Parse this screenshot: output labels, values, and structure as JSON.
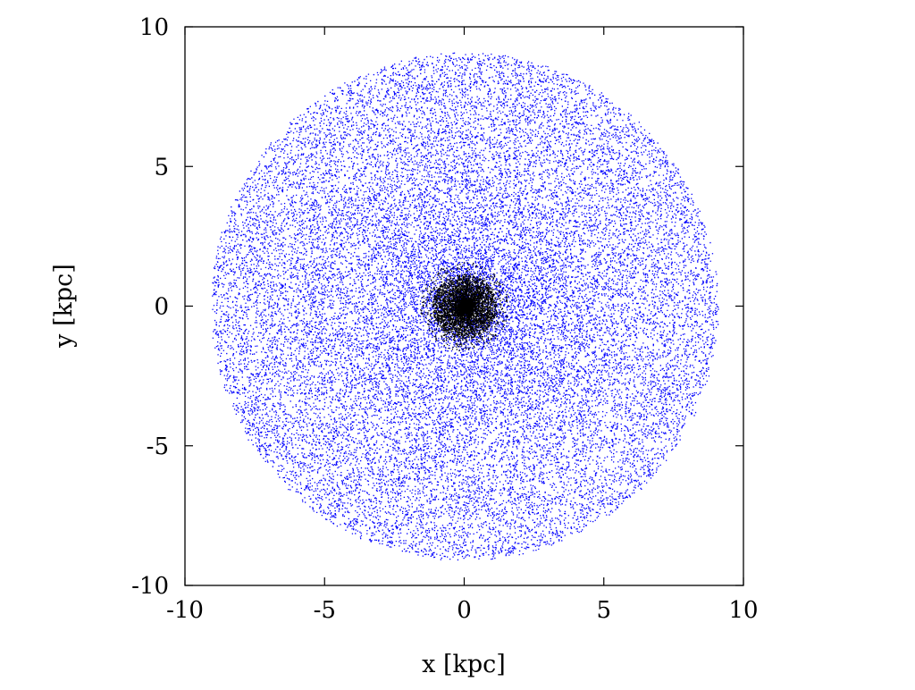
{
  "chart_data": {
    "type": "scatter",
    "title": "",
    "xlabel": "x [kpc]",
    "ylabel": "y [kpc]",
    "xlim": [
      -10,
      10
    ],
    "ylim": [
      -10,
      10
    ],
    "xticks": [
      -10,
      -5,
      0,
      5,
      10
    ],
    "yticks": [
      -10,
      -5,
      0,
      5,
      10
    ],
    "x_tick_labels": [
      "-10",
      "-5",
      "0",
      "5",
      "10"
    ],
    "y_tick_labels": [
      "-10",
      "-5",
      "0",
      "5",
      "10"
    ],
    "grid": false,
    "legend": "none",
    "series": [
      {
        "color": "#0000ff",
        "distribution": "disk of points, density decreasing outward",
        "center": [
          0,
          0
        ],
        "outer_radius": 9.1,
        "point_count": 26000
      },
      {
        "color": "#000000",
        "distribution": "dense central bulge",
        "center": [
          0,
          0
        ],
        "radius": 1.0,
        "point_count": 5500
      }
    ]
  }
}
